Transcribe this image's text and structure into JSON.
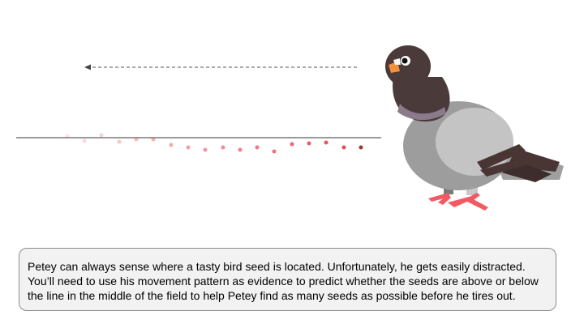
{
  "instructions": {
    "lines": [
      "Petey can always sense where a tasty bird seed is located. Unfortunately, he gets easily distracted.",
      "You’ll need to use his movement pattern as evidence to predict whether the seeds are above or below",
      "the line in the middle of the field to help Petey find as many seeds as possible before he tires out."
    ]
  },
  "colors": {
    "midline": "#9a9a9a",
    "arrow": "#555555",
    "trail": "#e8404a",
    "latest_dot": "#9b3a2a",
    "panel_bg": "#f2f2f2",
    "panel_border": "#8c8c8c"
  },
  "icons": {
    "bird": "pigeon-icon"
  }
}
